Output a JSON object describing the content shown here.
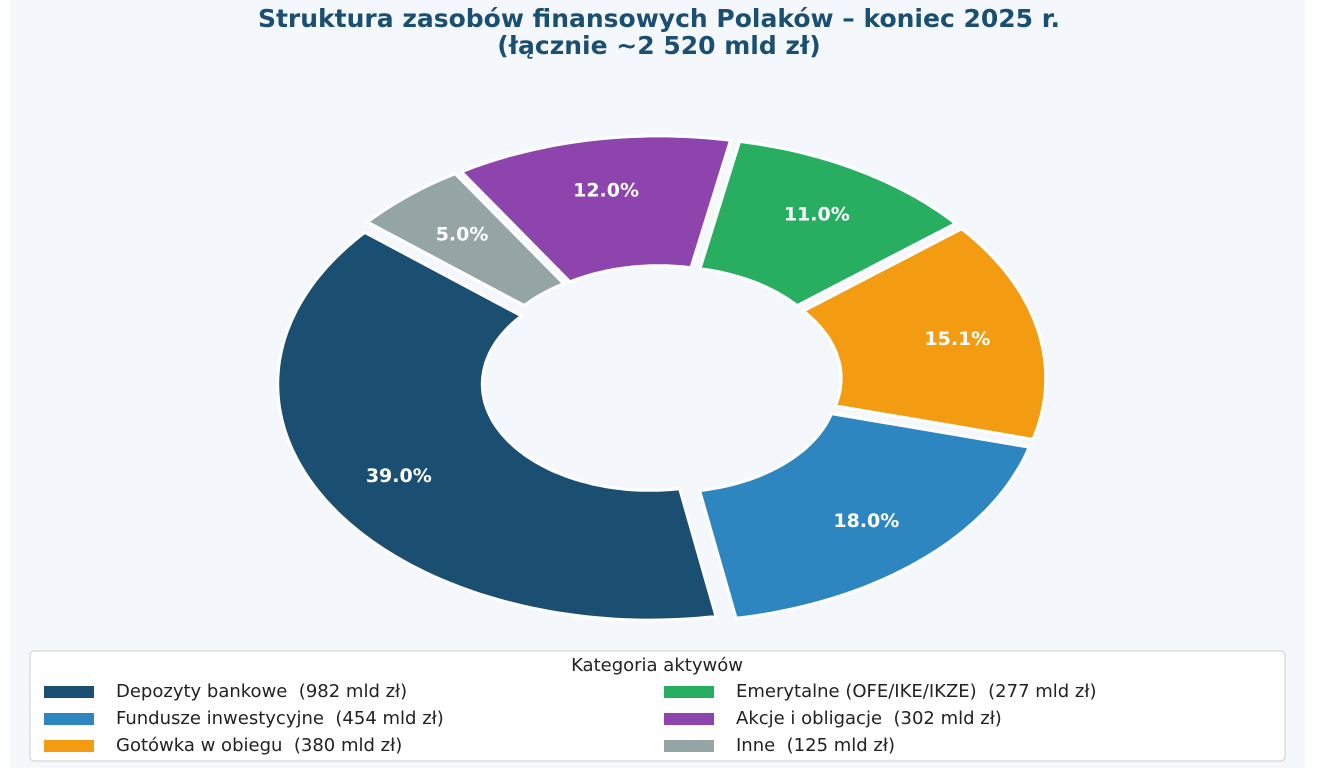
{
  "chart_data": {
    "type": "donut",
    "title": "Struktura zasobów finansowych Polaków – koniec 2025 r.",
    "subtitle": "(łącznie ~2 520 mld zł)",
    "categories": [
      "Depozyty bankowe",
      "Fundusze inwestycyjne",
      "Gotówka w obiegu",
      "Emerytalne (OFE/IKE/IKZE)",
      "Akcje i obligacje",
      "Inne"
    ],
    "legend_labels": [
      "Depozyty bankowe  (982 mld zł)",
      "Fundusze inwestycyjne  (454 mld zł)",
      "Gotówka w obiegu  (380 mld zł)",
      "Emerytalne (OFE/IKE/IKZE)  (277 mld zł)",
      "Akcje i obligacje  (302 mld zł)",
      "Inne  (125 mld zł)"
    ],
    "values": [
      39.0,
      18.0,
      15.1,
      11.0,
      12.0,
      5.0
    ],
    "value_labels": [
      "39.0%",
      "18.0%",
      "15.1%",
      "11.0%",
      "12.0%",
      "5.0%"
    ],
    "colors": [
      "#1b4f72",
      "#2e86c1",
      "#f39c12",
      "#27ae60",
      "#8e44ad",
      "#95a5a6"
    ],
    "legend_title": "Kategoria aktywów",
    "legend_position": "bottom"
  }
}
